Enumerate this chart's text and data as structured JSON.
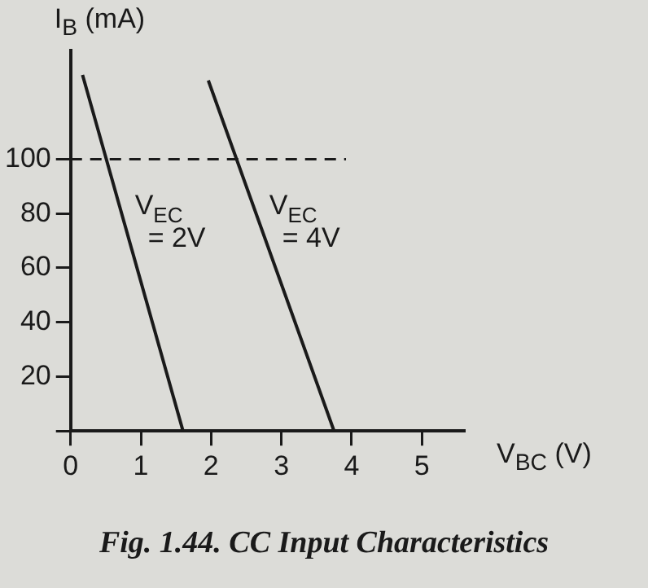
{
  "chart_data": {
    "type": "line",
    "title": "Fig. 1.44. CC Input Characteristics",
    "xlabel": "V$_{BC}$ (V)",
    "ylabel": "I$_{B}$ (mA)",
    "series": [
      {
        "name": "V$_{EC}$ = 2V",
        "color": "#1a1a1a",
        "x": [
          0.17,
          1.6
        ],
        "values": [
          131,
          0
        ]
      },
      {
        "name": "V$_{EC}$ = 4V",
        "color": "#1a1a1a",
        "x": [
          1.96,
          3.75
        ],
        "values": [
          129,
          0
        ]
      }
    ],
    "xlim": [
      0,
      5.6
    ],
    "xticks": [
      0,
      1,
      2,
      3,
      4,
      5
    ],
    "ylim": [
      0,
      140
    ],
    "yticks": [
      {
        "value": 0,
        "label": null
      },
      20,
      40,
      60,
      80,
      100
    ],
    "ref_lines": [
      {
        "axis": "y",
        "value": 100,
        "color": "#1a1a1a",
        "line_style": "dashed"
      }
    ],
    "grid": false,
    "legend": false,
    "marker": "none",
    "line_style": "solid"
  }
}
